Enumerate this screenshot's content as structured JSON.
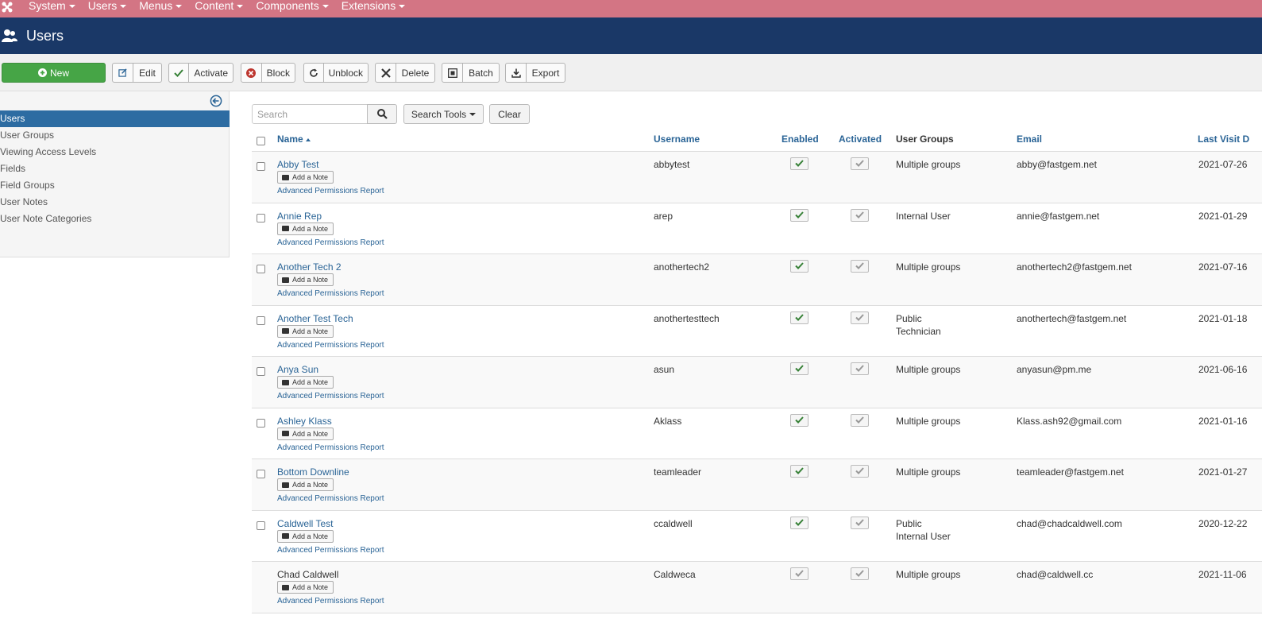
{
  "topnav": {
    "menus": [
      "System",
      "Users",
      "Menus",
      "Content",
      "Components",
      "Extensions"
    ]
  },
  "header": {
    "title": "Users"
  },
  "toolbar": {
    "new": "New",
    "edit": "Edit",
    "activate": "Activate",
    "block": "Block",
    "unblock": "Unblock",
    "delete": "Delete",
    "batch": "Batch",
    "export": "Export"
  },
  "sidebar": {
    "items": [
      "Users",
      "User Groups",
      "Viewing Access Levels",
      "Fields",
      "Field Groups",
      "User Notes",
      "User Note Categories"
    ],
    "active_index": 0
  },
  "filter": {
    "search_placeholder": "Search",
    "search_tools": "Search Tools",
    "clear": "Clear"
  },
  "table": {
    "headers": {
      "name": "Name",
      "username": "Username",
      "enabled": "Enabled",
      "activated": "Activated",
      "groups": "User Groups",
      "email": "Email",
      "last_visit": "Last Visit D"
    },
    "add_note_label": "Add a Note",
    "permissions_label": "Advanced Permissions Report",
    "rows": [
      {
        "name": "Abby Test",
        "username": "abbytest",
        "groups": "Multiple groups",
        "groups2": "",
        "email": "abby@fastgem.net",
        "last_visit": "2021-07-26",
        "enabled": true,
        "linked": true
      },
      {
        "name": "Annie Rep",
        "username": "arep",
        "groups": "Internal User",
        "groups2": "",
        "email": "annie@fastgem.net",
        "last_visit": "2021-01-29",
        "enabled": true,
        "linked": true
      },
      {
        "name": "Another Tech 2",
        "username": "anothertech2",
        "groups": "Multiple groups",
        "groups2": "",
        "email": "anothertech2@fastgem.net",
        "last_visit": "2021-07-16",
        "enabled": true,
        "linked": true
      },
      {
        "name": "Another Test Tech",
        "username": "anothertesttech",
        "groups": "Public",
        "groups2": "Technician",
        "email": "anothertech@fastgem.net",
        "last_visit": "2021-01-18",
        "enabled": true,
        "linked": true
      },
      {
        "name": "Anya Sun",
        "username": "asun",
        "groups": "Multiple groups",
        "groups2": "",
        "email": "anyasun@pm.me",
        "last_visit": "2021-06-16",
        "enabled": true,
        "linked": true
      },
      {
        "name": "Ashley Klass",
        "username": "Aklass",
        "groups": "Multiple groups",
        "groups2": "",
        "email": "Klass.ash92@gmail.com",
        "last_visit": "2021-01-16",
        "enabled": true,
        "linked": true
      },
      {
        "name": "Bottom Downline",
        "username": "teamleader",
        "groups": "Multiple groups",
        "groups2": "",
        "email": "teamleader@fastgem.net",
        "last_visit": "2021-01-27",
        "enabled": true,
        "linked": true
      },
      {
        "name": "Caldwell Test",
        "username": "ccaldwell",
        "groups": "Public",
        "groups2": "Internal User",
        "email": "chad@chadcaldwell.com",
        "last_visit": "2020-12-22",
        "enabled": true,
        "linked": true
      },
      {
        "name": "Chad Caldwell",
        "username": "Caldweca",
        "groups": "Multiple groups",
        "groups2": "",
        "email": "chad@caldwell.cc",
        "last_visit": "2021-11-06",
        "enabled": false,
        "linked": false
      }
    ]
  },
  "colors": {
    "topnav": "#d37584",
    "header": "#1a3867",
    "active": "#2d6ca2",
    "link": "#2a6496",
    "new_button": "#46a546"
  }
}
